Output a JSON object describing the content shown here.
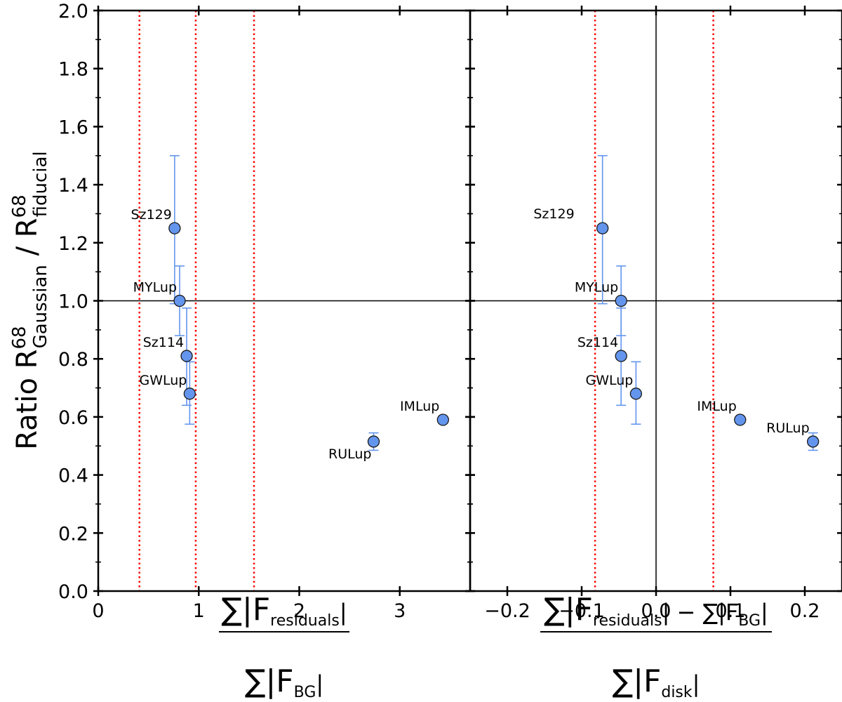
{
  "chart_data": [
    {
      "type": "scatter",
      "panel": "left",
      "ylabel_main": "Ratio R",
      "ylabel_sup": "68",
      "ylabel_sub1": "Gaussian",
      "ylabel_mid": " / R",
      "ylabel_sub2": "fiducial",
      "xlabel_num_prefix": "∑|F",
      "xlabel_num_sub": "residuals",
      "xlabel_num_suffix": "|",
      "xlabel_den_prefix": "∑|F",
      "xlabel_den_sub": "BG",
      "xlabel_den_suffix": "|",
      "xlim": [
        0,
        3.7
      ],
      "ylim": [
        0,
        2.0
      ],
      "xticks": [
        0,
        1,
        2,
        3
      ],
      "xtick_labels": [
        "0",
        "1",
        "2",
        "3"
      ],
      "yticks": [
        0.0,
        0.2,
        0.4,
        0.6,
        0.8,
        1.0,
        1.2,
        1.4,
        1.6,
        1.8,
        2.0
      ],
      "ytick_labels": [
        "0.0",
        "0.2",
        "0.4",
        "0.6",
        "0.8",
        "1.0",
        "1.2",
        "1.4",
        "1.6",
        "1.8",
        "2.0"
      ],
      "reference_hline": 1.0,
      "red_dotted_vlines": [
        0.41,
        0.97,
        1.55
      ],
      "points": [
        {
          "name": "Sz129",
          "x": 0.76,
          "y": 1.25,
          "yerr_low": 0.26,
          "yerr_high": 0.25,
          "label_pos": "left"
        },
        {
          "name": "MYLup",
          "x": 0.81,
          "y": 1.0,
          "yerr_low": 0.12,
          "yerr_high": 0.12,
          "label_pos": "left"
        },
        {
          "name": "Sz114",
          "x": 0.88,
          "y": 0.81,
          "yerr_low": 0.17,
          "yerr_high": 0.165,
          "label_pos": "left"
        },
        {
          "name": "GWLup",
          "x": 0.91,
          "y": 0.68,
          "yerr_low": 0.105,
          "yerr_high": 0.11,
          "label_pos": "left"
        },
        {
          "name": "RULup",
          "x": 2.74,
          "y": 0.515,
          "yerr_low": 0.03,
          "yerr_high": 0.03,
          "label_pos": "below-left"
        },
        {
          "name": "IMLup",
          "x": 3.43,
          "y": 0.59,
          "yerr_low": 0.0,
          "yerr_high": 0.0,
          "label_pos": "above-left"
        }
      ]
    },
    {
      "type": "scatter",
      "panel": "right",
      "xlabel_num_prefix": "∑|F",
      "xlabel_num_sub": "residuals",
      "xlabel_num_mid": "| − ∑|F",
      "xlabel_num_sub2": "BG",
      "xlabel_num_suffix": "|",
      "xlabel_den_prefix": "∑|F",
      "xlabel_den_sub": "disk",
      "xlabel_den_suffix": "|",
      "xlim": [
        -0.25,
        0.25
      ],
      "ylim": [
        0,
        2.0
      ],
      "xticks": [
        -0.2,
        -0.1,
        0.0,
        0.1,
        0.2
      ],
      "xtick_labels": [
        "−0.2",
        "−0.1",
        "0.0",
        "0.1",
        "0.2"
      ],
      "reference_hline": 1.0,
      "reference_vline": 0.0,
      "red_dotted_vlines": [
        -0.082,
        0.077
      ],
      "points": [
        {
          "name": "Sz129",
          "x": -0.072,
          "y": 1.25,
          "yerr_low": 0.26,
          "yerr_high": 0.25,
          "label_pos": "far-left"
        },
        {
          "name": "MYLup",
          "x": -0.047,
          "y": 1.0,
          "yerr_low": 0.12,
          "yerr_high": 0.12,
          "label_pos": "left"
        },
        {
          "name": "Sz114",
          "x": -0.047,
          "y": 0.81,
          "yerr_low": 0.17,
          "yerr_high": 0.165,
          "label_pos": "left"
        },
        {
          "name": "GWLup",
          "x": -0.027,
          "y": 0.68,
          "yerr_low": 0.105,
          "yerr_high": 0.11,
          "label_pos": "left"
        },
        {
          "name": "IMLup",
          "x": 0.113,
          "y": 0.59,
          "yerr_low": 0.0,
          "yerr_high": 0.0,
          "label_pos": "above-left"
        },
        {
          "name": "RULup",
          "x": 0.211,
          "y": 0.515,
          "yerr_low": 0.03,
          "yerr_high": 0.03,
          "label_pos": "above-left"
        }
      ]
    }
  ],
  "colors": {
    "marker_fill": "#6495ED",
    "marker_edge": "#1a1a1a",
    "errorbar": "#6495ED",
    "red_line": "#FF0000",
    "axis": "#000000"
  }
}
